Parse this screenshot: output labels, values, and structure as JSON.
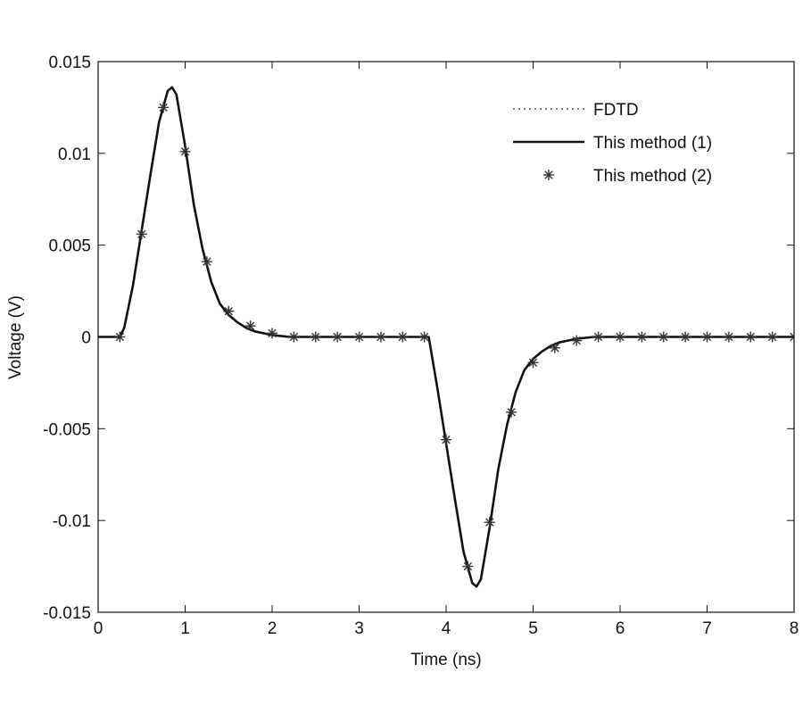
{
  "chart_data": {
    "type": "line",
    "xlabel": "Time (ns)",
    "ylabel": "Voltage (V)",
    "xlim": [
      0,
      8
    ],
    "ylim": [
      -0.015,
      0.015
    ],
    "x_ticks": [
      0,
      1,
      2,
      3,
      4,
      5,
      6,
      7,
      8
    ],
    "x_tick_labels": [
      "0",
      "1",
      "2",
      "3",
      "4",
      "5",
      "6",
      "7",
      "8"
    ],
    "y_ticks": [
      -0.015,
      -0.01,
      -0.005,
      0,
      0.005,
      0.01,
      0.015
    ],
    "y_tick_labels": [
      "-0.015",
      "-0.01",
      "-0.005",
      "0",
      "0.005",
      "0.01",
      "0.015"
    ],
    "grid": false,
    "legend_position": "top-right",
    "series": [
      {
        "name": "FDTD",
        "style": "dotted",
        "color": "#222222",
        "x": [
          0.0,
          0.25,
          0.3,
          0.4,
          0.5,
          0.6,
          0.7,
          0.8,
          0.85,
          0.9,
          1.0,
          1.1,
          1.2,
          1.3,
          1.4,
          1.5,
          1.6,
          1.7,
          1.8,
          1.9,
          2.0,
          2.2,
          2.5,
          3.0,
          3.5,
          3.8,
          3.9,
          4.0,
          4.1,
          4.2,
          4.3,
          4.35,
          4.4,
          4.5,
          4.6,
          4.7,
          4.8,
          4.9,
          5.0,
          5.1,
          5.2,
          5.3,
          5.4,
          5.5,
          5.7,
          6.0,
          6.5,
          7.0,
          8.0
        ],
        "y": [
          0.0,
          0.0,
          0.0005,
          0.0028,
          0.0058,
          0.0088,
          0.0117,
          0.0134,
          0.0136,
          0.0132,
          0.0104,
          0.0072,
          0.0048,
          0.003,
          0.0018,
          0.0012,
          0.0008,
          0.0005,
          0.0003,
          0.0002,
          0.0001,
          0.0,
          0.0,
          0.0,
          0.0,
          0.0,
          -0.0028,
          -0.0058,
          -0.0088,
          -0.0117,
          -0.0134,
          -0.0136,
          -0.0132,
          -0.0104,
          -0.0072,
          -0.0048,
          -0.003,
          -0.0018,
          -0.0012,
          -0.0008,
          -0.0005,
          -0.0003,
          -0.0002,
          -0.0001,
          0.0,
          0.0,
          0.0,
          0.0,
          0.0
        ]
      },
      {
        "name": "This method (1)",
        "style": "solid",
        "color": "#111111",
        "x": [
          0.0,
          0.25,
          0.3,
          0.4,
          0.5,
          0.6,
          0.7,
          0.8,
          0.85,
          0.9,
          1.0,
          1.1,
          1.2,
          1.3,
          1.4,
          1.5,
          1.6,
          1.7,
          1.8,
          1.9,
          2.0,
          2.2,
          2.5,
          3.0,
          3.5,
          3.8,
          3.9,
          4.0,
          4.1,
          4.2,
          4.3,
          4.35,
          4.4,
          4.5,
          4.6,
          4.7,
          4.8,
          4.9,
          5.0,
          5.1,
          5.2,
          5.3,
          5.4,
          5.5,
          5.7,
          6.0,
          6.5,
          7.0,
          8.0
        ],
        "y": [
          0.0,
          0.0,
          0.0005,
          0.0028,
          0.0058,
          0.0088,
          0.0117,
          0.0134,
          0.0136,
          0.0132,
          0.0104,
          0.0072,
          0.0048,
          0.003,
          0.0018,
          0.0012,
          0.0008,
          0.0005,
          0.0003,
          0.0002,
          0.0001,
          0.0,
          0.0,
          0.0,
          0.0,
          0.0,
          -0.0028,
          -0.0058,
          -0.0088,
          -0.0117,
          -0.0134,
          -0.0136,
          -0.0132,
          -0.0104,
          -0.0072,
          -0.0048,
          -0.003,
          -0.0018,
          -0.0012,
          -0.0008,
          -0.0005,
          -0.0003,
          -0.0002,
          -0.0001,
          0.0,
          0.0,
          0.0,
          0.0,
          0.0
        ]
      },
      {
        "name": "This method (2)",
        "style": "markers",
        "marker": "asterisk",
        "color": "#333333",
        "x": [
          0.25,
          0.5,
          0.75,
          1.0,
          1.25,
          1.5,
          1.75,
          2.0,
          2.25,
          2.5,
          2.75,
          3.0,
          3.25,
          3.5,
          3.75,
          4.0,
          4.25,
          4.5,
          4.75,
          5.0,
          5.25,
          5.5,
          5.75,
          6.0,
          6.25,
          6.5,
          6.75,
          7.0,
          7.25,
          7.5,
          7.75,
          8.0
        ],
        "y": [
          0.0,
          0.0056,
          0.0125,
          0.0101,
          0.0041,
          0.0014,
          0.0006,
          0.0002,
          0.0,
          0.0,
          0.0,
          0.0,
          0.0,
          0.0,
          0.0,
          -0.0056,
          -0.0125,
          -0.0101,
          -0.0041,
          -0.0014,
          -0.0006,
          -0.0002,
          0.0,
          0.0,
          0.0,
          0.0,
          0.0,
          0.0,
          0.0,
          0.0,
          0.0,
          0.0
        ]
      }
    ]
  }
}
